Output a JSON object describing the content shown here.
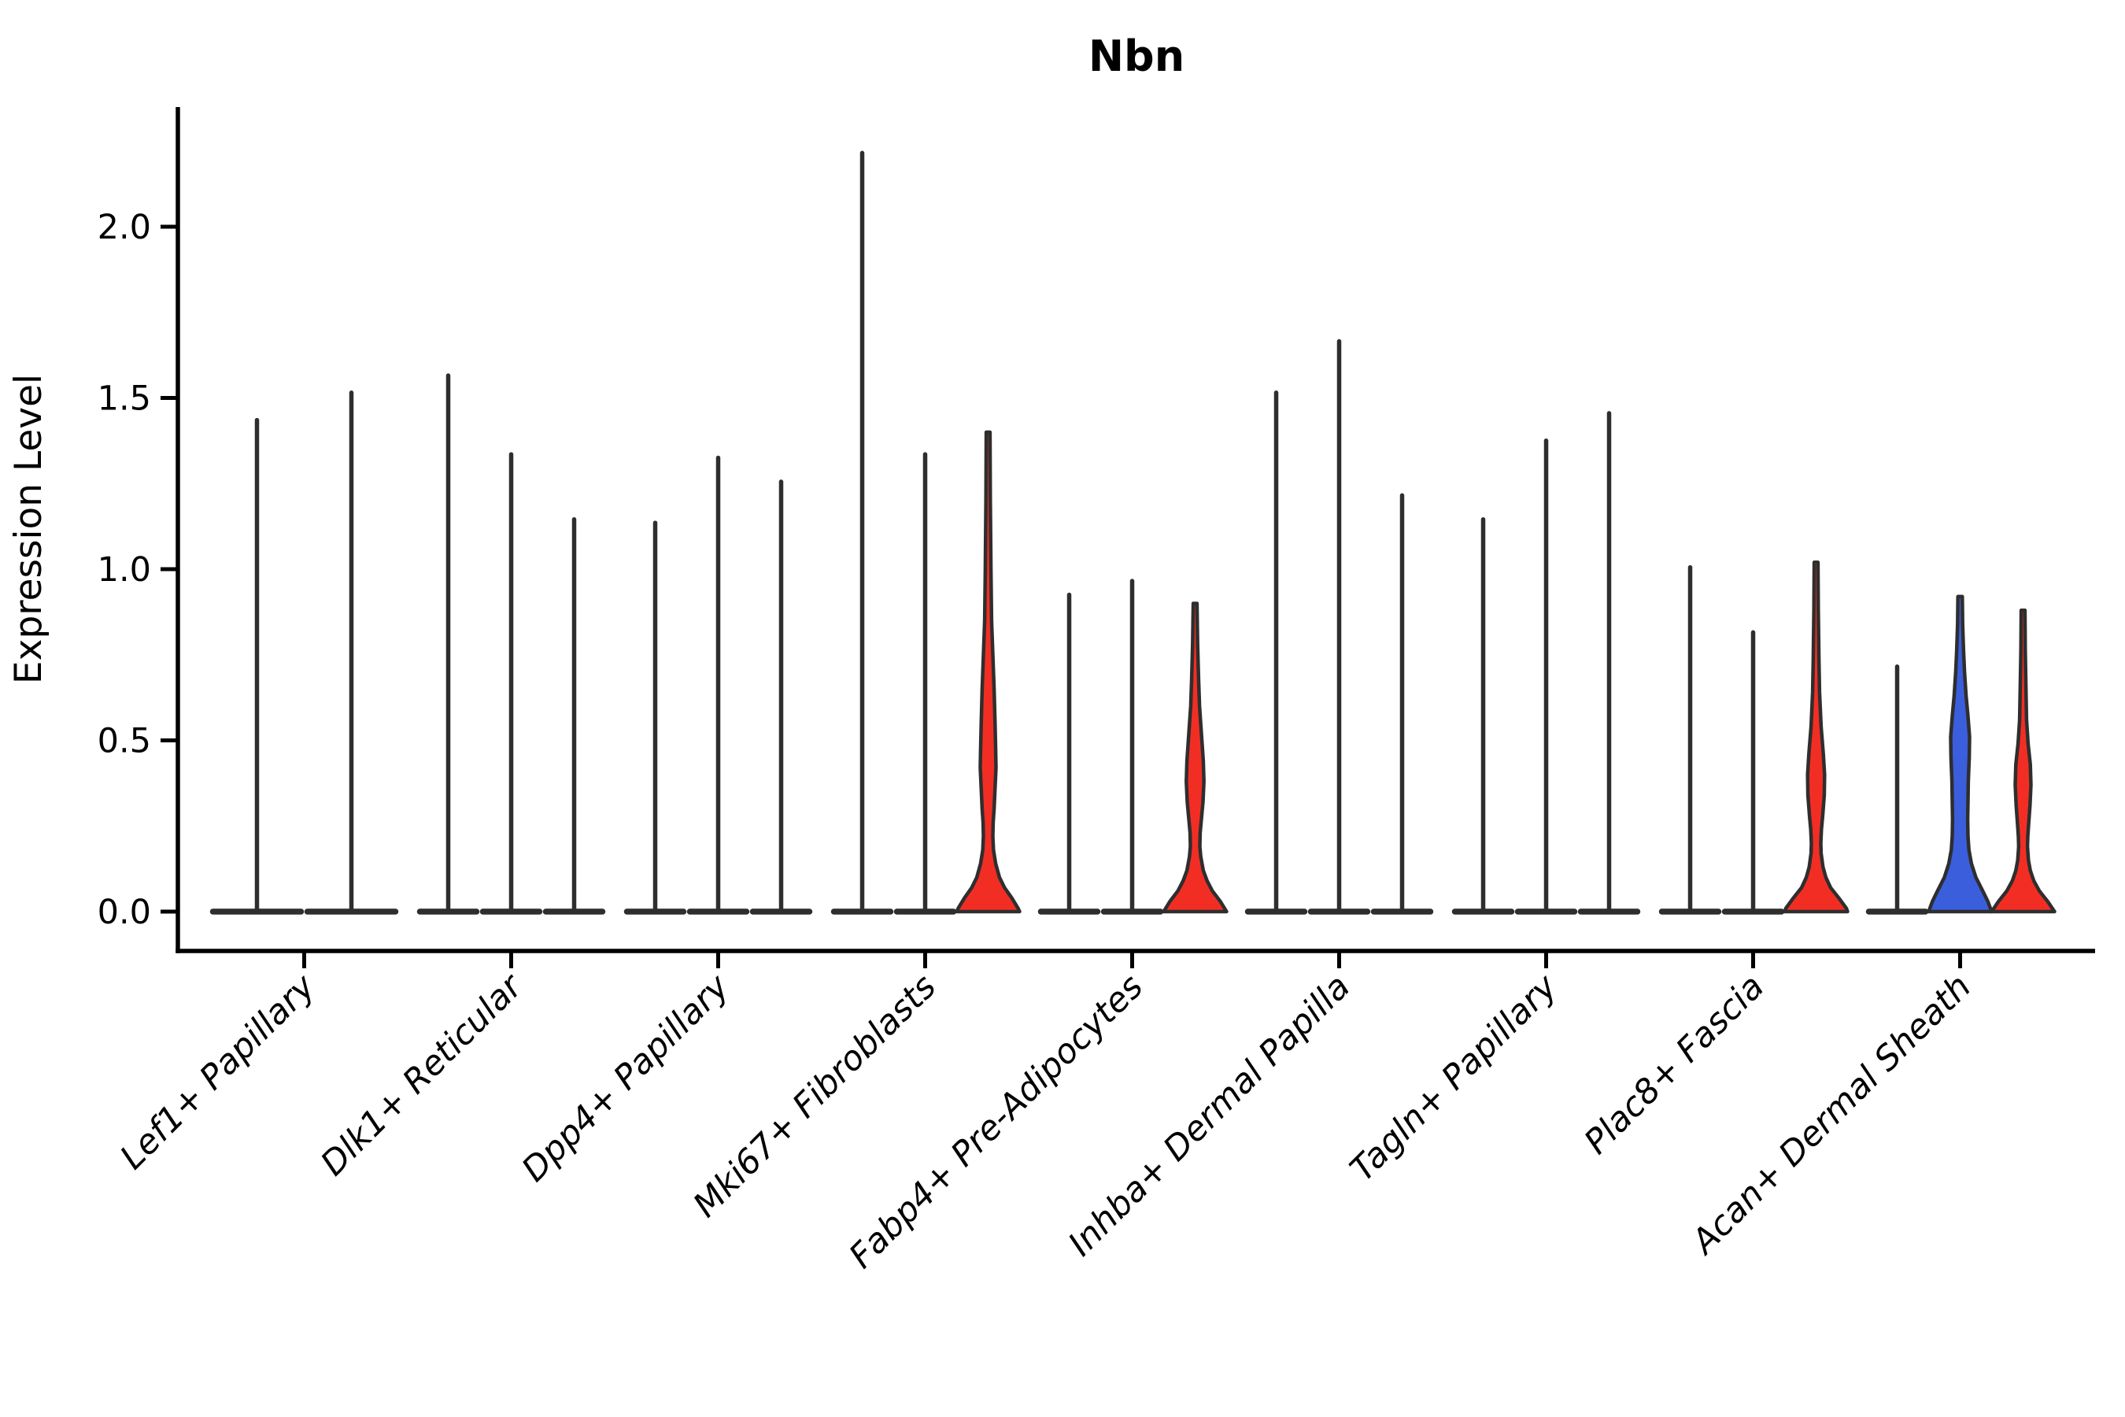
{
  "figure": {
    "title": "Nbn",
    "ylabel": "Expression Level",
    "xlabel": ""
  },
  "colors": {
    "red": "#F22E24",
    "blue": "#3B5EDC",
    "violin_stroke": "#2E2E2E",
    "axis": "#000000",
    "background": "#FFFFFF"
  },
  "chart_data": {
    "type": "violin",
    "title": "Nbn",
    "xlabel": "",
    "ylabel": "Expression Level",
    "ylim": [
      -0.12,
      2.34
    ],
    "grid": false,
    "legend": "none",
    "yticks": [
      0.0,
      0.5,
      1.0,
      1.5,
      2.0
    ],
    "ytick_labels": [
      "0.0",
      "0.5",
      "1.0",
      "1.5",
      "2.0"
    ],
    "categories": [
      "Lef1+ Papillary",
      "Dlk1+ Reticular",
      "Dpp4+ Papillary",
      "Mki67+ Fibroblasts",
      "Fabp4+ Pre-Adipocytes",
      "Inhba+ Dermal Papilla",
      "Tagln+ Papillary",
      "Plac8+ Fascia",
      "Acan+ Dermal Sheath"
    ],
    "groups": [
      {
        "category": "Lef1+ Papillary",
        "violins": [
          {
            "max": 1.44,
            "fill": "white"
          },
          {
            "max": 1.52,
            "fill": "white"
          }
        ]
      },
      {
        "category": "Dlk1+ Reticular",
        "violins": [
          {
            "max": 1.57,
            "fill": "white"
          },
          {
            "max": 1.34,
            "fill": "white"
          },
          {
            "max": 1.15,
            "fill": "white"
          }
        ]
      },
      {
        "category": "Dpp4+ Papillary",
        "violins": [
          {
            "max": 1.14,
            "fill": "white"
          },
          {
            "max": 1.33,
            "fill": "white"
          },
          {
            "max": 1.26,
            "fill": "white"
          }
        ]
      },
      {
        "category": "Mki67+ Fibroblasts",
        "violins": [
          {
            "max": 2.22,
            "fill": "white"
          },
          {
            "max": 1.34,
            "fill": "white"
          },
          {
            "max": 1.4,
            "fill": "red",
            "profile": [
              [
                1.4,
                0.06
              ],
              [
                1.2,
                0.07
              ],
              [
                1.0,
                0.09
              ],
              [
                0.85,
                0.11
              ],
              [
                0.75,
                0.15
              ],
              [
                0.65,
                0.19
              ],
              [
                0.55,
                0.22
              ],
              [
                0.47,
                0.24
              ],
              [
                0.42,
                0.25
              ],
              [
                0.36,
                0.22
              ],
              [
                0.3,
                0.19
              ],
              [
                0.26,
                0.16
              ],
              [
                0.22,
                0.15
              ],
              [
                0.18,
                0.17
              ],
              [
                0.14,
                0.24
              ],
              [
                0.1,
                0.36
              ],
              [
                0.07,
                0.52
              ],
              [
                0.04,
                0.75
              ],
              [
                0.01,
                0.95
              ],
              [
                0.0,
                1.0
              ]
            ]
          }
        ]
      },
      {
        "category": "Fabp4+ Pre-Adipocytes",
        "violins": [
          {
            "max": 0.93,
            "fill": "white"
          },
          {
            "max": 0.97,
            "fill": "white"
          },
          {
            "max": 0.9,
            "fill": "red",
            "profile": [
              [
                0.9,
                0.06
              ],
              [
                0.78,
                0.08
              ],
              [
                0.68,
                0.11
              ],
              [
                0.6,
                0.14
              ],
              [
                0.52,
                0.2
              ],
              [
                0.44,
                0.26
              ],
              [
                0.38,
                0.28
              ],
              [
                0.32,
                0.25
              ],
              [
                0.27,
                0.2
              ],
              [
                0.23,
                0.16
              ],
              [
                0.19,
                0.15
              ],
              [
                0.16,
                0.18
              ],
              [
                0.12,
                0.26
              ],
              [
                0.09,
                0.38
              ],
              [
                0.06,
                0.55
              ],
              [
                0.03,
                0.8
              ],
              [
                0.0,
                1.0
              ]
            ]
          }
        ]
      },
      {
        "category": "Inhba+ Dermal Papilla",
        "violins": [
          {
            "max": 1.52,
            "fill": "white"
          },
          {
            "max": 1.67,
            "fill": "white"
          },
          {
            "max": 1.22,
            "fill": "white"
          }
        ]
      },
      {
        "category": "Tagln+ Papillary",
        "violins": [
          {
            "max": 1.15,
            "fill": "white"
          },
          {
            "max": 1.38,
            "fill": "white"
          },
          {
            "max": 1.46,
            "fill": "white"
          }
        ]
      },
      {
        "category": "Plac8+ Fascia",
        "violins": [
          {
            "max": 1.01,
            "fill": "white"
          },
          {
            "max": 0.82,
            "fill": "white"
          },
          {
            "max": 1.02,
            "fill": "red",
            "profile": [
              [
                1.02,
                0.06
              ],
              [
                0.88,
                0.07
              ],
              [
                0.74,
                0.09
              ],
              [
                0.64,
                0.11
              ],
              [
                0.54,
                0.16
              ],
              [
                0.46,
                0.23
              ],
              [
                0.4,
                0.27
              ],
              [
                0.34,
                0.26
              ],
              [
                0.28,
                0.21
              ],
              [
                0.24,
                0.17
              ],
              [
                0.2,
                0.15
              ],
              [
                0.17,
                0.16
              ],
              [
                0.13,
                0.22
              ],
              [
                0.1,
                0.31
              ],
              [
                0.07,
                0.46
              ],
              [
                0.04,
                0.72
              ],
              [
                0.01,
                0.96
              ],
              [
                0.0,
                1.0
              ]
            ]
          }
        ]
      },
      {
        "category": "Acan+ Dermal Sheath",
        "violins": [
          {
            "max": 0.72,
            "fill": "white"
          },
          {
            "max": 0.92,
            "fill": "blue",
            "profile": [
              [
                0.92,
                0.07
              ],
              [
                0.84,
                0.08
              ],
              [
                0.76,
                0.11
              ],
              [
                0.7,
                0.14
              ],
              [
                0.63,
                0.19
              ],
              [
                0.57,
                0.25
              ],
              [
                0.51,
                0.3
              ],
              [
                0.45,
                0.29
              ],
              [
                0.38,
                0.26
              ],
              [
                0.32,
                0.25
              ],
              [
                0.27,
                0.24
              ],
              [
                0.22,
                0.25
              ],
              [
                0.18,
                0.28
              ],
              [
                0.14,
                0.36
              ],
              [
                0.1,
                0.5
              ],
              [
                0.06,
                0.72
              ],
              [
                0.03,
                0.88
              ],
              [
                0.0,
                1.0
              ]
            ]
          },
          {
            "max": 0.88,
            "fill": "red",
            "profile": [
              [
                0.88,
                0.06
              ],
              [
                0.76,
                0.07
              ],
              [
                0.66,
                0.09
              ],
              [
                0.56,
                0.11
              ],
              [
                0.49,
                0.16
              ],
              [
                0.43,
                0.23
              ],
              [
                0.37,
                0.25
              ],
              [
                0.31,
                0.22
              ],
              [
                0.26,
                0.18
              ],
              [
                0.22,
                0.15
              ],
              [
                0.19,
                0.14
              ],
              [
                0.15,
                0.17
              ],
              [
                0.12,
                0.23
              ],
              [
                0.09,
                0.34
              ],
              [
                0.06,
                0.52
              ],
              [
                0.03,
                0.78
              ],
              [
                0.0,
                1.0
              ]
            ]
          }
        ]
      }
    ]
  }
}
